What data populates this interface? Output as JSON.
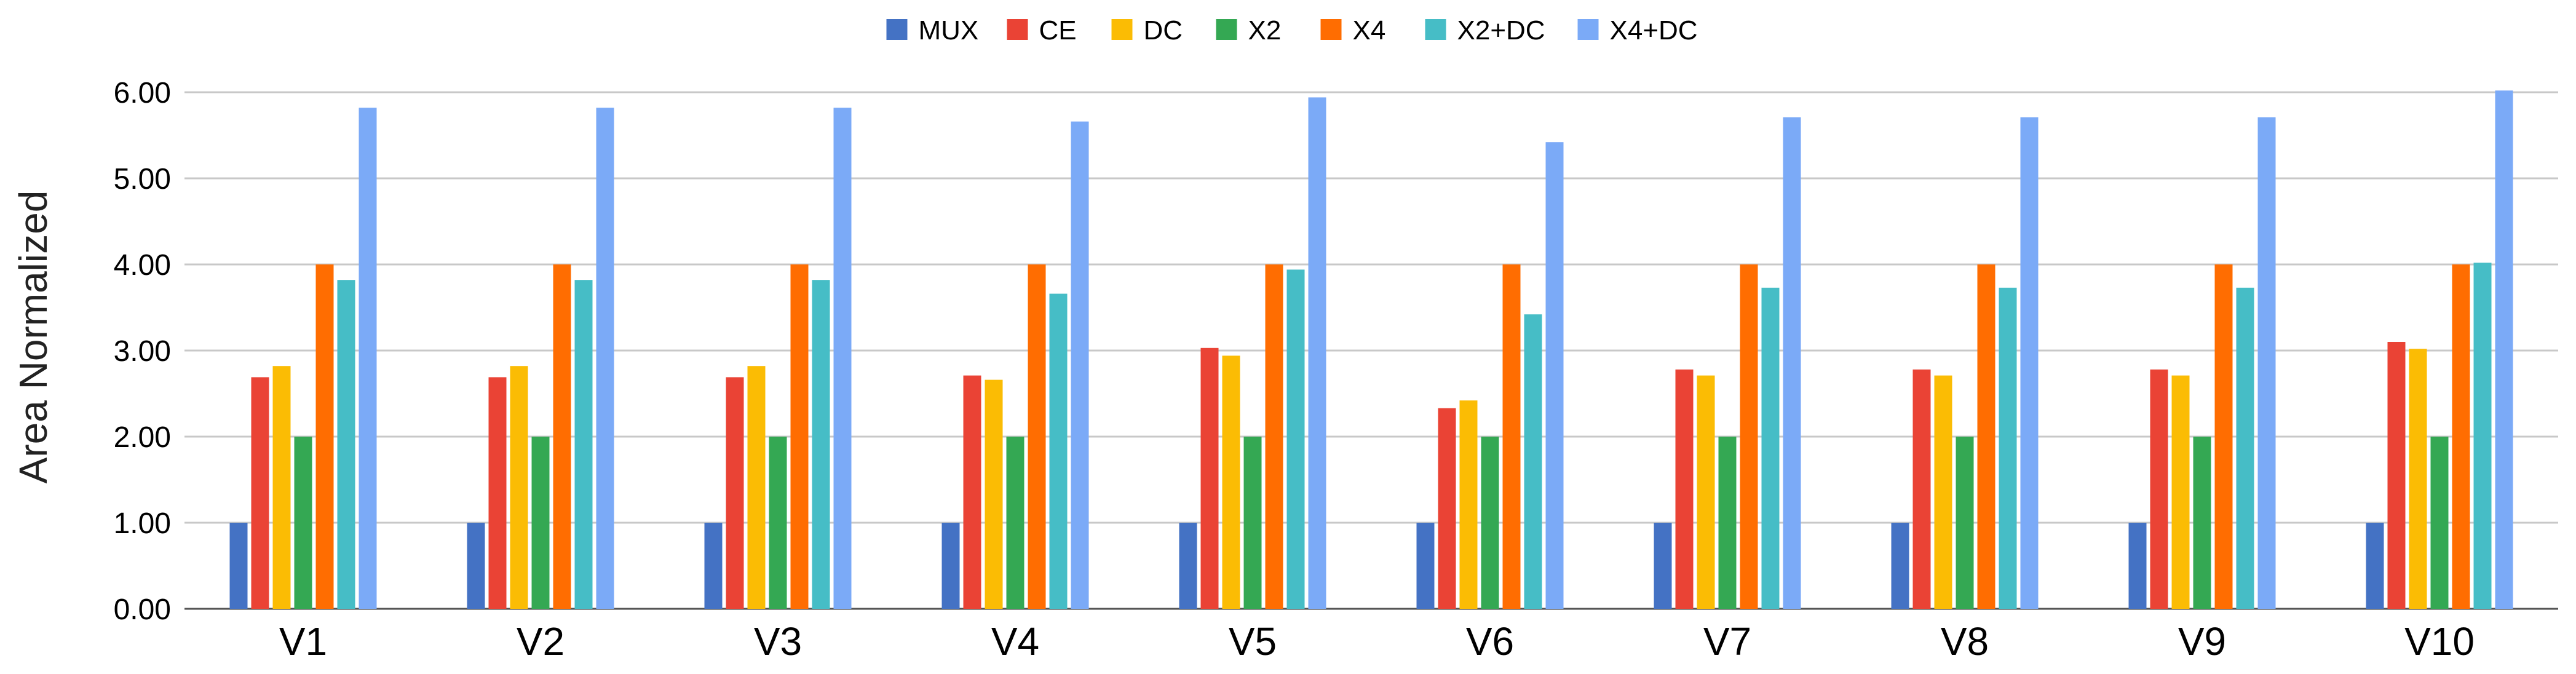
{
  "chart_data": {
    "type": "bar",
    "title": "",
    "xlabel": "",
    "ylabel": "Area Normalized",
    "ylim": [
      0,
      6
    ],
    "yticks": [
      "0.00",
      "1.00",
      "2.00",
      "3.00",
      "4.00",
      "5.00",
      "6.00"
    ],
    "grid": true,
    "legend_position": "top-center",
    "categories": [
      "V1",
      "V2",
      "V3",
      "V4",
      "V5",
      "V6",
      "V7",
      "V8",
      "V9",
      "V10"
    ],
    "series": [
      {
        "name": "MUX",
        "color": "#4472c4",
        "values": [
          1,
          1,
          1,
          1,
          1,
          1,
          1,
          1,
          1,
          1
        ]
      },
      {
        "name": "CE",
        "color": "#ea4335",
        "values": [
          2.69,
          2.69,
          2.69,
          2.71,
          3.03,
          2.33,
          2.78,
          2.78,
          2.78,
          3.1
        ]
      },
      {
        "name": "DC",
        "color": "#fbbc04",
        "values": [
          2.82,
          2.82,
          2.82,
          2.66,
          2.94,
          2.42,
          2.71,
          2.71,
          2.71,
          3.02
        ]
      },
      {
        "name": "X2",
        "color": "#34a853",
        "values": [
          2,
          2,
          2,
          2,
          2,
          2,
          2,
          2,
          2,
          2
        ]
      },
      {
        "name": "X4",
        "color": "#ff6d01",
        "values": [
          4,
          4,
          4,
          4,
          4,
          4,
          4,
          4,
          4,
          4
        ]
      },
      {
        "name": "X2+DC",
        "color": "#46bdc6",
        "values": [
          3.82,
          3.82,
          3.82,
          3.66,
          3.94,
          3.42,
          3.73,
          3.73,
          3.73,
          4.02
        ]
      },
      {
        "name": "X4+DC",
        "color": "#7baaf7",
        "values": [
          5.82,
          5.82,
          5.82,
          5.66,
          5.94,
          5.42,
          5.71,
          5.71,
          5.71,
          6.02
        ]
      }
    ]
  }
}
